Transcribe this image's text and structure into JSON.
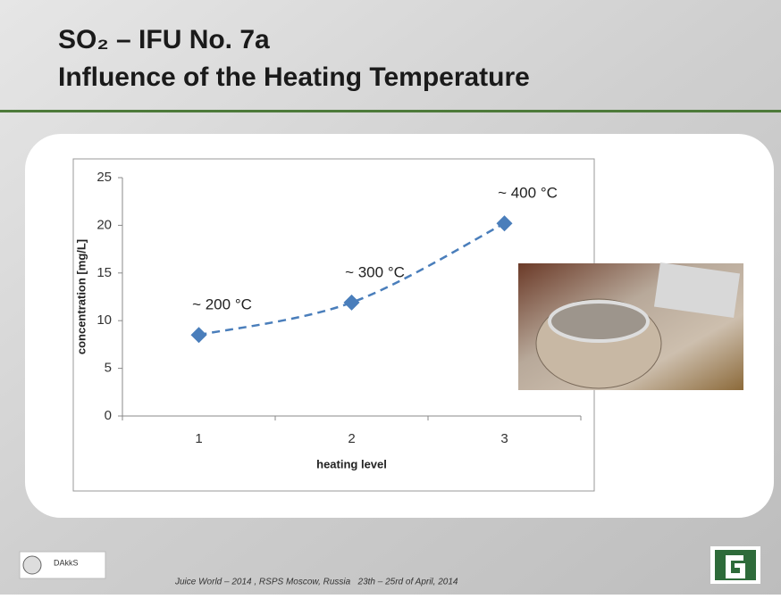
{
  "slide": {
    "title_lines": [
      "SO₂ – IFU No. 7a",
      "Influence of the Heating Temperature"
    ],
    "footer": "Juice World – 2014 , RSPS Moscow, Russia   23th – 25rd of April, 2014",
    "logo_text": "DAkkS"
  },
  "chart_data": {
    "type": "line",
    "categories": [
      "1",
      "2",
      "3"
    ],
    "series": [
      {
        "color": "#4a7ebb",
        "values": [
          8.5,
          11.9,
          20.2
        ]
      }
    ],
    "annotations": [
      "~ 200 °C",
      "~ 300 °C",
      "~ 400 °C"
    ],
    "x_label": "heating level",
    "y_label": "concentration [mg/L]",
    "ylim": [
      0,
      25
    ],
    "yticks": [
      0,
      5,
      10,
      15,
      20,
      25
    ],
    "line_style": "dashed",
    "smooth": true,
    "grid": false
  }
}
